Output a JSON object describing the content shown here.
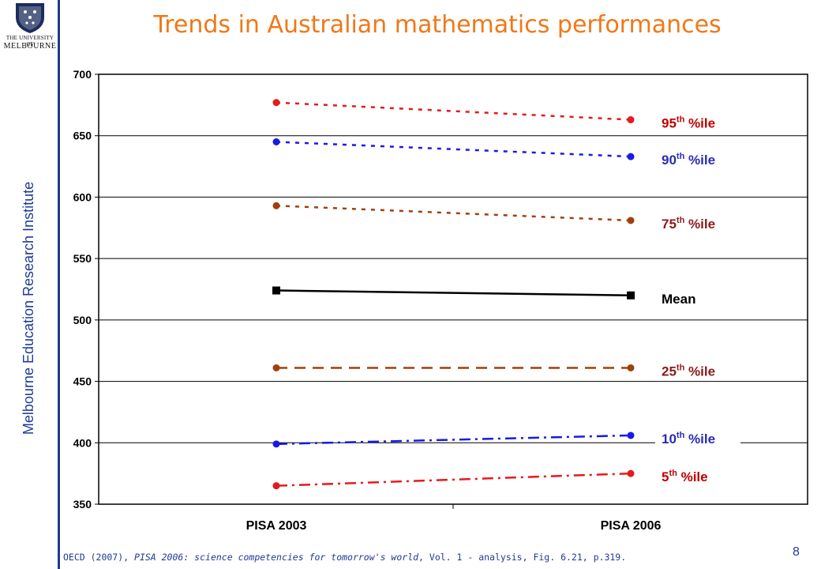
{
  "logo": {
    "line1": "THE UNIVERSITY OF",
    "line2": "MELBOURNE"
  },
  "side_label": "Melbourne Education Research Institute",
  "title": "Trends in Australian mathematics performances",
  "source": {
    "part1": "OECD (2007), ",
    "part2": "PISA 2006: science competencies for tomorrow's world",
    "part3": ", Vol. 1 - analysis, ",
    "part4": "Fig. 6.21, p.319."
  },
  "page_number": "8",
  "chart_data": {
    "type": "line",
    "categories": [
      "PISA 2003",
      "PISA 2006"
    ],
    "ylim": [
      350,
      700
    ],
    "yticks": [
      350,
      400,
      450,
      500,
      550,
      600,
      650,
      700
    ],
    "grid": true,
    "series": [
      {
        "name": "95",
        "suffix": "th",
        "unit": "%ile",
        "values": [
          677,
          663
        ],
        "color": "#e41a1c",
        "dash": "short",
        "marker": "circle",
        "label_color": "#c00000"
      },
      {
        "name": "90",
        "suffix": "th",
        "unit": "%ile",
        "values": [
          645,
          633
        ],
        "color": "#1a1ae6",
        "dash": "short",
        "marker": "circle",
        "label_color": "#2a2ab8"
      },
      {
        "name": "75",
        "suffix": "th",
        "unit": "%ile",
        "values": [
          593,
          581
        ],
        "color": "#a0400c",
        "dash": "short",
        "marker": "circle",
        "label_color": "#8b1a1a"
      },
      {
        "name": "Mean",
        "suffix": "",
        "unit": "",
        "values": [
          524,
          520
        ],
        "color": "#000000",
        "dash": "solid",
        "marker": "square",
        "label_color": "#000000"
      },
      {
        "name": "25",
        "suffix": "th",
        "unit": "%ile",
        "values": [
          461,
          461
        ],
        "color": "#a0400c",
        "dash": "long",
        "marker": "circle",
        "label_color": "#8b1a1a"
      },
      {
        "name": "10",
        "suffix": "th",
        "unit": "%ile",
        "values": [
          399,
          406
        ],
        "color": "#1a1ae6",
        "dash": "dashdot",
        "marker": "circle",
        "label_color": "#2a2ab8"
      },
      {
        "name": "5",
        "suffix": "th",
        "unit": "%ile",
        "values": [
          365,
          375
        ],
        "color": "#e41a1c",
        "dash": "dashdot",
        "marker": "circle",
        "label_color": "#c00000"
      }
    ]
  }
}
